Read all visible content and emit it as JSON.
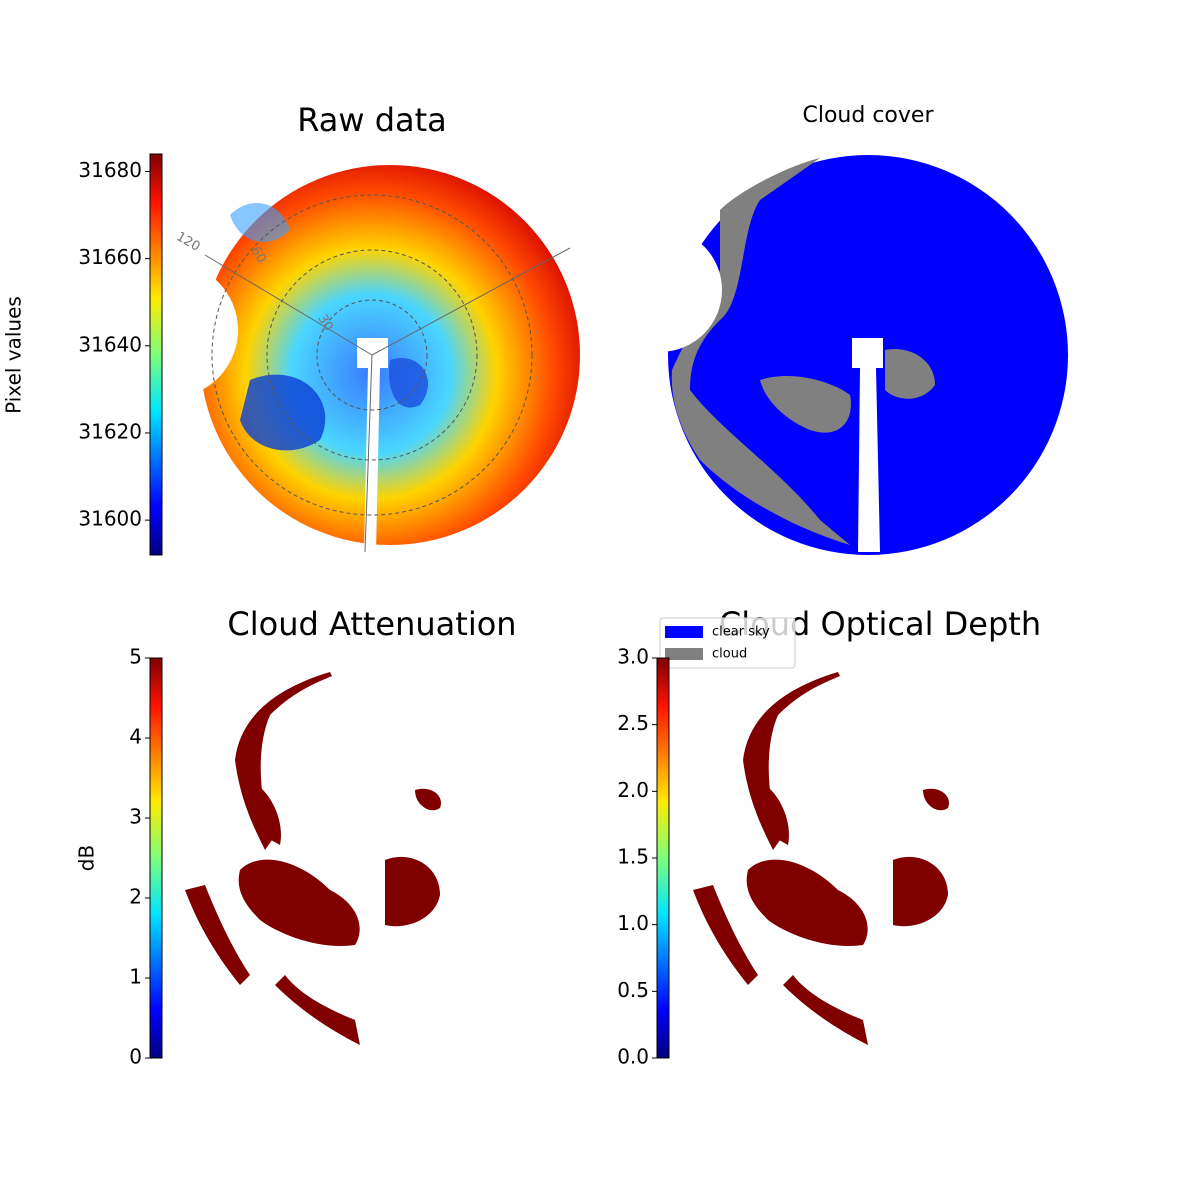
{
  "chart_data": [
    {
      "type": "image",
      "title": "Raw data",
      "colorbar_label": "Pixel values",
      "colormap": "jet",
      "ylim": [
        31592,
        31684
      ],
      "yticks": [
        31600,
        31620,
        31640,
        31660,
        31680
      ],
      "annotations": [
        "120",
        "60",
        "30"
      ]
    },
    {
      "type": "categorical_image",
      "title": "Cloud cover",
      "legend": [
        {
          "name": "clear sky",
          "color": "#0000ff"
        },
        {
          "name": "cloud",
          "color": "#808080"
        }
      ]
    },
    {
      "type": "image",
      "title": "Cloud Attenuation",
      "colorbar_label": "dB",
      "colormap": "jet",
      "ylim": [
        0,
        5
      ],
      "yticks": [
        0,
        1,
        2,
        3,
        4,
        5
      ]
    },
    {
      "type": "image",
      "title": "Cloud Optical Depth",
      "colormap": "jet",
      "ylim": [
        0,
        3
      ],
      "yticks": [
        {
          "value": 0,
          "label": "0.0"
        },
        0.5,
        {
          "value": 1,
          "label": "1.0"
        },
        1.5,
        {
          "value": 2,
          "label": "2.0"
        },
        2.5,
        {
          "value": 3,
          "label": "3.0"
        }
      ]
    }
  ]
}
